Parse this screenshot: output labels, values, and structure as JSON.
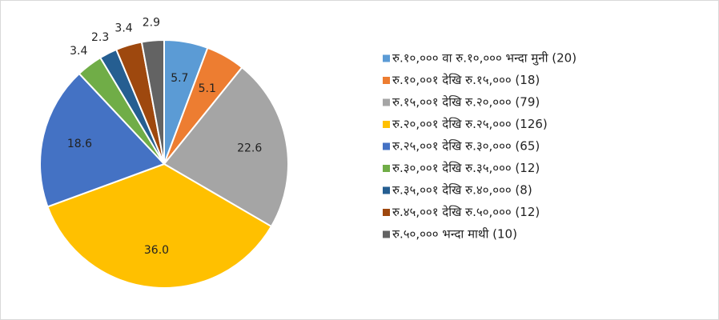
{
  "chart_data": {
    "type": "pie",
    "categories": [
      "रु.१०,००० वा रु.१०,००० भन्दा मुनी (20)",
      "रु.१०,००१ देखि रु.१५,००० (18)",
      "रु.१५,००१ देखि रु.२०,००० (79)",
      "रु.२०,००१ देखि रु.२५,००० (126)",
      "रु.२५,००१ देखि रु.३०,००० (65)",
      "रु.३०,००१ देखि रु.३५,००० (12)",
      "रु.३५,००१ देखि रु.४०,००० (8)",
      "रु.४५,००१ देखि रु.५०,००० (12)",
      "रु.५०,००० भन्दा माथी (10)"
    ],
    "values": [
      5.7,
      5.1,
      22.6,
      36.0,
      18.6,
      3.4,
      2.3,
      3.4,
      2.9
    ],
    "value_labels": [
      "5.7",
      "5.1",
      "22.6",
      "36.0",
      "18.6",
      "3.4",
      "2.3",
      "3.4",
      "2.9"
    ],
    "colors": [
      "#5b9bd5",
      "#ed7d31",
      "#a5a5a5",
      "#ffc000",
      "#4472c4",
      "#70ad47",
      "#255e91",
      "#9e480e",
      "#636363"
    ],
    "legend": "right"
  }
}
